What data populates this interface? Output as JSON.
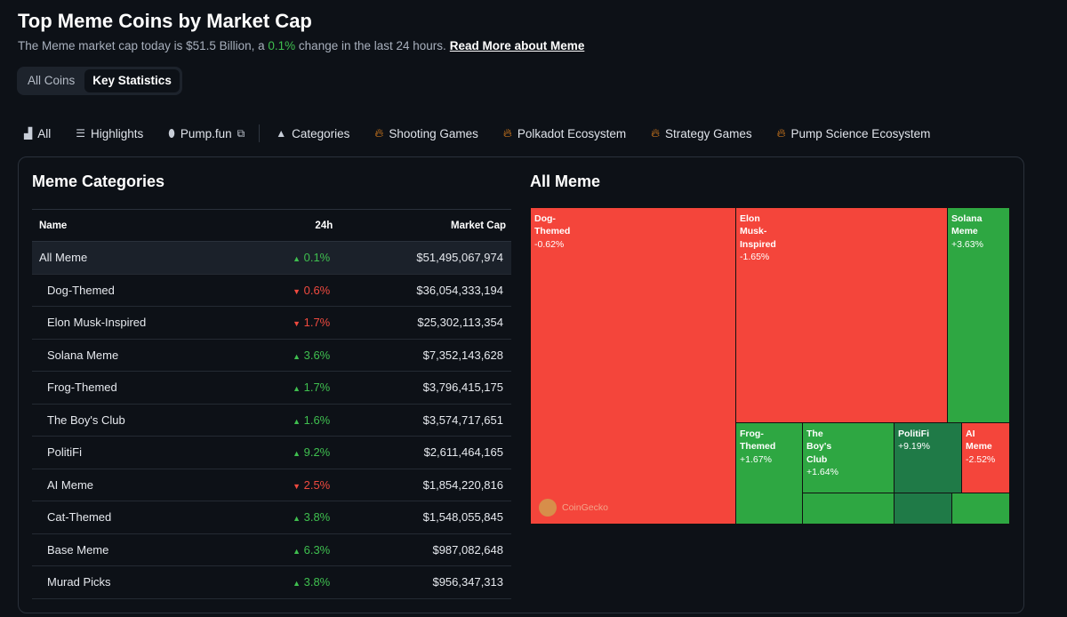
{
  "header": {
    "title": "Top Meme Coins by Market Cap",
    "sub_pre": "The Meme market cap today is $51.5 Billion, a ",
    "sub_change": "0.1%",
    "sub_post": " change in the last 24 hours.",
    "read_more": "Read More about Meme"
  },
  "toggle": {
    "all_coins": "All Coins",
    "key_statistics": "Key Statistics",
    "active": "Key Statistics"
  },
  "nav": [
    "All",
    "Highlights",
    "Pump.fun",
    "Categories",
    "Shooting Games",
    "Polkadot Ecosystem",
    "Strategy Games",
    "Pump Science Ecosystem"
  ],
  "categories": {
    "title": "Meme Categories",
    "columns": [
      "Name",
      "24h",
      "Market Cap"
    ],
    "rows": [
      {
        "name": "All Meme",
        "change": "0.1%",
        "dir": "up",
        "cap": "$51,495,067,974"
      },
      {
        "name": "Dog-Themed",
        "change": "0.6%",
        "dir": "down",
        "cap": "$36,054,333,194"
      },
      {
        "name": "Elon Musk-Inspired",
        "change": "1.7%",
        "dir": "down",
        "cap": "$25,302,113,354"
      },
      {
        "name": "Solana Meme",
        "change": "3.6%",
        "dir": "up",
        "cap": "$7,352,143,628"
      },
      {
        "name": "Frog-Themed",
        "change": "1.7%",
        "dir": "up",
        "cap": "$3,796,415,175"
      },
      {
        "name": "The Boy's Club",
        "change": "1.6%",
        "dir": "up",
        "cap": "$3,574,717,651"
      },
      {
        "name": "PolitiFi",
        "change": "9.2%",
        "dir": "up",
        "cap": "$2,611,464,165"
      },
      {
        "name": "AI Meme",
        "change": "2.5%",
        "dir": "down",
        "cap": "$1,854,220,816"
      },
      {
        "name": "Cat-Themed",
        "change": "3.8%",
        "dir": "up",
        "cap": "$1,548,055,845"
      },
      {
        "name": "Base Meme",
        "change": "6.3%",
        "dir": "up",
        "cap": "$987,082,648"
      },
      {
        "name": "Murad Picks",
        "change": "3.8%",
        "dir": "up",
        "cap": "$956,347,313"
      }
    ]
  },
  "treemap": {
    "title": "All Meme",
    "watermark": "CoinGecko",
    "colors": {
      "down": "#f4453b",
      "up": "#2ea742",
      "strong_up": "#1f7a47"
    },
    "tiles": [
      {
        "name": "Dog-Themed",
        "change": "-0.62%"
      },
      {
        "name": "Elon Musk-Inspired",
        "change": "-1.65%"
      },
      {
        "name": "Solana Meme",
        "change": "+3.63%"
      },
      {
        "name": "Frog-Themed",
        "change": "+1.67%"
      },
      {
        "name": "The Boy's Club",
        "change": "+1.64%"
      },
      {
        "name": "PolitiFi",
        "change": "+9.19%"
      },
      {
        "name": "AI Meme",
        "change": "-2.52%"
      }
    ]
  }
}
